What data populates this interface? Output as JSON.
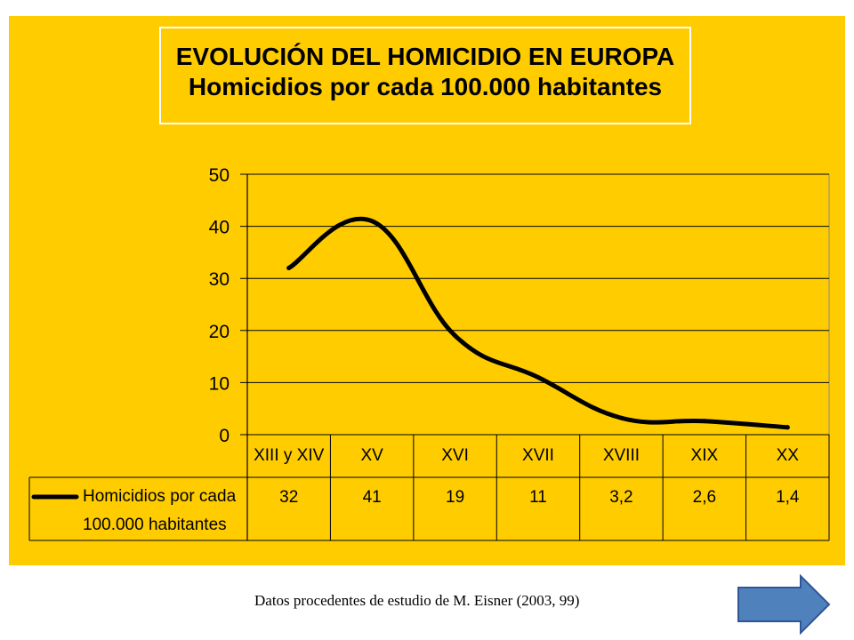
{
  "title": "EVOLUCIÓN DEL HOMICIDIO EN EUROPA",
  "subtitle": "Homicidios por cada 100.000 habitantes",
  "source_note": "Datos procedentes de estudio de M. Eisner (2003, 99)",
  "colors": {
    "background": "#FFCC00",
    "line": "#000000",
    "grid": "#000000",
    "next_button": "#4F81BD"
  },
  "next_button": {
    "icon": "right-arrow-icon"
  },
  "chart_data": {
    "type": "line",
    "categories": [
      "XIII y XIV",
      "XV",
      "XVI",
      "XVII",
      "XVIII",
      "XIX",
      "XX"
    ],
    "series": [
      {
        "name": "Homicidios por cada 100.000 habitantes",
        "legend_lines": [
          "Homicidios por cada",
          "100.000 habitantes"
        ],
        "values": [
          32,
          41,
          19,
          11,
          3.2,
          2.6,
          1.4
        ],
        "value_labels": [
          "32",
          "41",
          "19",
          "11",
          "3,2",
          "2,6",
          "1,4"
        ]
      }
    ],
    "ylim": [
      0,
      50
    ],
    "yticks": [
      0,
      10,
      20,
      30,
      40,
      50
    ],
    "grid": true,
    "legend": "data-table-left",
    "smooth": true
  }
}
